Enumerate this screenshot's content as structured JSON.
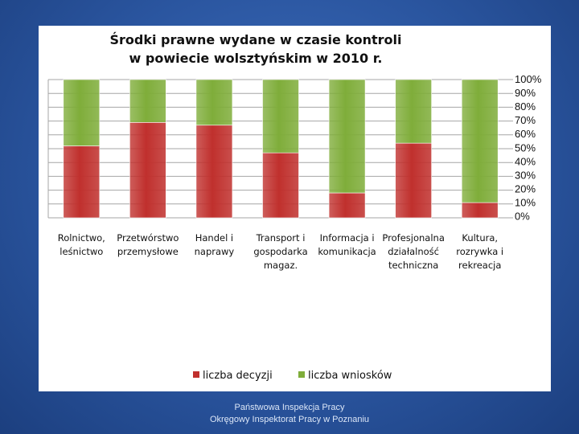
{
  "chart_data": {
    "type": "bar",
    "stacked": true,
    "percent": true,
    "title": [
      "Środki prawne wydane w czasie kontroli",
      "w powiecie wolsztyńskim w 2010 r."
    ],
    "categories": [
      [
        "Rolnictwo,",
        "leśnictwo"
      ],
      [
        "Przetwórstwo",
        "przemysłowe"
      ],
      [
        "Handel i",
        "naprawy"
      ],
      [
        "Transport i",
        "gospodarka",
        "magaz."
      ],
      [
        "Informacja i",
        "komunikacja"
      ],
      [
        "Profesjonalna",
        "działalność",
        "techniczna"
      ],
      [
        "Kultura,",
        "rozrywka i",
        "rekreacja"
      ]
    ],
    "series": [
      {
        "name": "liczba decyzji",
        "color": "#c0302d",
        "values": [
          52,
          69,
          67,
          47,
          18,
          54,
          11
        ]
      },
      {
        "name": "liczba wniosków",
        "color": "#7fad3a",
        "values": [
          48,
          31,
          33,
          53,
          82,
          46,
          89
        ]
      }
    ],
    "yticks": [
      "100%",
      "90%",
      "80%",
      "70%",
      "60%",
      "50%",
      "40%",
      "30%",
      "20%",
      "10%",
      "0%"
    ],
    "ylim": [
      0,
      100
    ],
    "grid": true,
    "legend": "bottom"
  },
  "footer": {
    "line1": "Państwowa Inspekcja Pracy",
    "line2": "Okręgowy Inspektorat Pracy w Poznaniu"
  }
}
